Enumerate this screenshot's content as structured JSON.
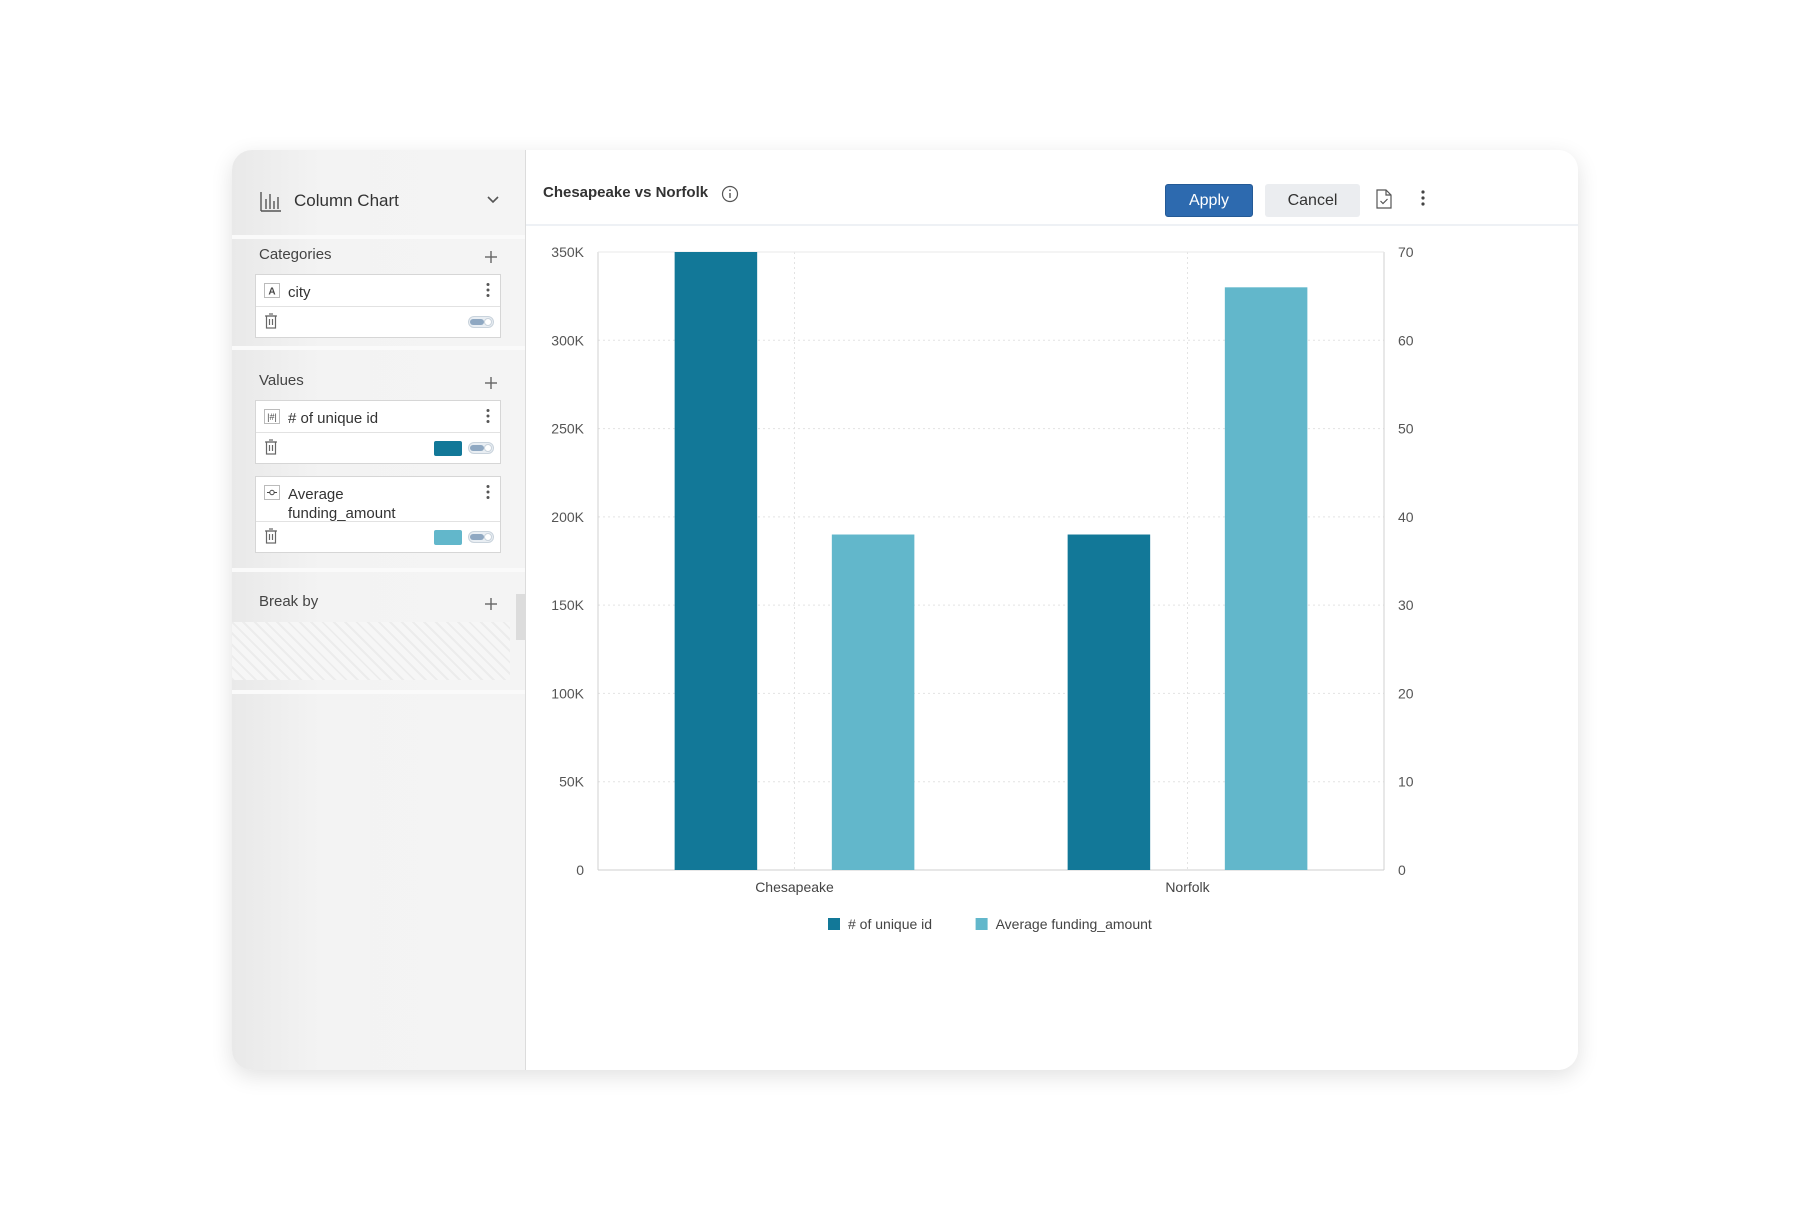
{
  "sidebar": {
    "chart_type": {
      "label": "Column Chart",
      "icon": "column-chart-icon"
    },
    "categories": {
      "title": "Categories",
      "fields": [
        {
          "type_icon": "A",
          "name": "city"
        }
      ]
    },
    "values": {
      "title": "Values",
      "fields": [
        {
          "type_icon": "|#|",
          "name": "# of unique id",
          "color": "#127898"
        },
        {
          "type_icon": "average-icon",
          "name": "Average funding_amount",
          "color": "#62b7cb"
        }
      ]
    },
    "break_by": {
      "title": "Break by"
    }
  },
  "header": {
    "title": "Chesapeake vs Norfolk",
    "apply_label": "Apply",
    "cancel_label": "Cancel"
  },
  "chart_data": {
    "type": "bar",
    "title": "",
    "categories": [
      "Chesapeake",
      "Norfolk"
    ],
    "series": [
      {
        "name": "# of unique id",
        "axis": "left",
        "color": "#127898",
        "values": [
          350000,
          190000
        ]
      },
      {
        "name": "Average funding_amount",
        "axis": "right",
        "color": "#62b7cb",
        "values": [
          38,
          66
        ]
      }
    ],
    "y_left": {
      "range": [
        0,
        350000
      ],
      "ticks": [
        "0",
        "50K",
        "100K",
        "150K",
        "200K",
        "250K",
        "300K",
        "350K"
      ]
    },
    "y_right": {
      "range": [
        0,
        70
      ],
      "ticks": [
        "0",
        "10",
        "20",
        "30",
        "40",
        "50",
        "60",
        "70"
      ]
    },
    "grid": true,
    "legend_position": "bottom"
  }
}
